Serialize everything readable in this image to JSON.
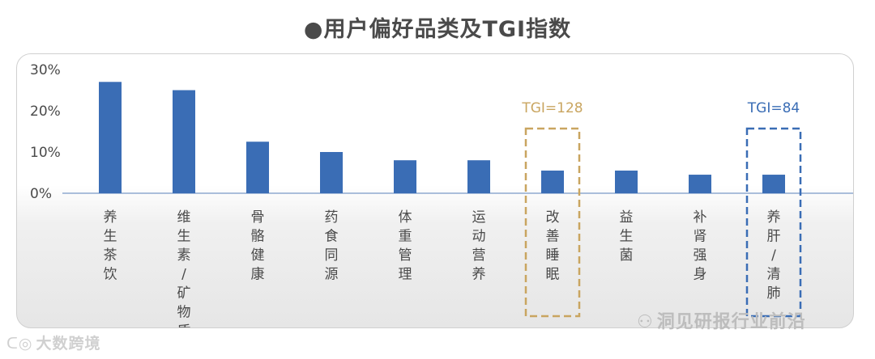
{
  "title": "●用户偏好品类及TGI指数",
  "colors": {
    "bar": "#3a6db5",
    "axis": "#8fa9d0",
    "highlight_gold": "#c9a560",
    "highlight_blue": "#3a6db5",
    "title": "#4a4a4a"
  },
  "chart_data": {
    "type": "bar",
    "categories": [
      "养生茶饮",
      "维生素/矿物质",
      "骨骼健康",
      "药食同源",
      "体重管理",
      "运动营养",
      "改善睡眠",
      "益生菌",
      "补肾强身",
      "养肝/清肺"
    ],
    "values": [
      27,
      25,
      12.5,
      10,
      8,
      8,
      5.5,
      5.5,
      4.5,
      4.5
    ],
    "ylim": [
      0,
      30
    ],
    "yticks": [
      0,
      10,
      20,
      30
    ],
    "ytick_labels": [
      "0%",
      "10%",
      "20%",
      "30%"
    ],
    "annotations": [
      {
        "category_index": 6,
        "text": "TGI=128",
        "style": "gold-dashed-box"
      },
      {
        "category_index": 9,
        "text": "TGI=84",
        "style": "blue-dashed-box"
      }
    ]
  },
  "watermarks": {
    "left": "大数跨境",
    "right": "洞见研报行业前沿"
  }
}
